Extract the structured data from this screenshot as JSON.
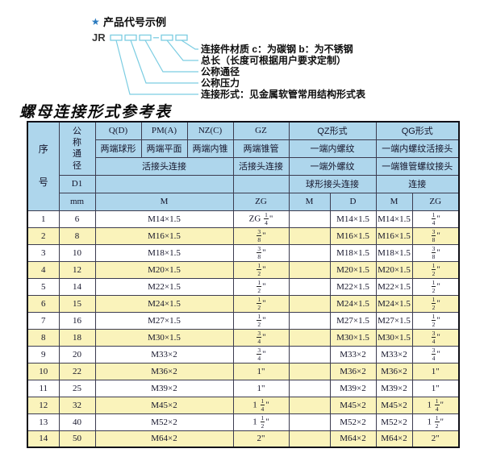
{
  "diagram": {
    "star": "★",
    "title": "产品代号示例",
    "prefix": "JR",
    "dash": "—",
    "labels": [
      "连接件材质  c：为碳钢  b：为不锈钢",
      "总长（长度可根据用户要求定制）",
      "公称通径",
      "公称压力",
      "连接形式：见金属软管常用结构形式表"
    ]
  },
  "table_title": "螺母连接形式参考表",
  "table": {
    "header": {
      "seq": "序号",
      "dn": "公称通径",
      "d1": "D1",
      "mm": "mm",
      "q": "Q(D)",
      "q_sub": "两端球形",
      "pm": "PM(A)",
      "pm_sub": "两端平面",
      "nz": "NZ(C)",
      "nz_sub": "两端内锥",
      "gz": "GZ",
      "gz_sub": "两端锥管",
      "union_left": "活接头连接",
      "union_gz": "活接头连接",
      "qz": "QZ形式",
      "qz_sub1": "一端内螺纹",
      "qz_sub2": "一端外螺纹",
      "qz_sub3": "球形接头连接",
      "qg": "QG形式",
      "qg_sub1": "一端内螺纹活接头",
      "qg_sub2": "一端锥管螺纹接头",
      "qg_sub3": "连接",
      "m_main": "M",
      "zg_gz": "ZG",
      "qz_m": "M",
      "qz_d": "D",
      "qg_m": "M",
      "qg_zg": "ZG"
    },
    "rows": [
      [
        "1",
        "6",
        "M14×1.5",
        "ZG 1/4\"",
        "",
        "M14×1.5",
        "M14×1.5",
        "1/4\""
      ],
      [
        "2",
        "8",
        "M16×1.5",
        "3/8\"",
        "",
        "M16×1.5",
        "M16×1.5",
        "3/8\""
      ],
      [
        "3",
        "10",
        "M18×1.5",
        "3/8\"",
        "",
        "M18×1.5",
        "M18×1.5",
        "3/8\""
      ],
      [
        "4",
        "12",
        "M20×1.5",
        "1/2\"",
        "",
        "M20×1.5",
        "M20×1.5",
        "1/2\""
      ],
      [
        "5",
        "14",
        "M22×1.5",
        "1/2\"",
        "",
        "M22×1.5",
        "M22×1.5",
        "1/2\""
      ],
      [
        "6",
        "15",
        "M24×1.5",
        "1/2\"",
        "",
        "M24×1.5",
        "M24×1.5",
        "1/2\""
      ],
      [
        "7",
        "16",
        "M27×1.5",
        "1/2\"",
        "",
        "M27×1.5",
        "M27×1.5",
        "1/2\""
      ],
      [
        "8",
        "18",
        "M30×1.5",
        "3/4\"",
        "",
        "M30×1.5",
        "M30×1.5",
        "3/4\""
      ],
      [
        "9",
        "20",
        "M33×2",
        "3/4\"",
        "",
        "M33×2",
        "M33×2",
        "3/4\""
      ],
      [
        "10",
        "22",
        "M36×2",
        "1\"",
        "",
        "M36×2",
        "M36×2",
        "1\""
      ],
      [
        "11",
        "25",
        "M39×2",
        "1\"",
        "",
        "M39×2",
        "M39×2",
        "1\""
      ],
      [
        "12",
        "32",
        "M45×2",
        "1 1/4\"",
        "",
        "M45×2",
        "M45×2",
        "1 1/4\""
      ],
      [
        "13",
        "40",
        "M52×2",
        "1 1/2\"",
        "",
        "M52×2",
        "M52×2",
        "1 1/2\""
      ],
      [
        "14",
        "50",
        "M64×2",
        "2\"",
        "",
        "M64×2",
        "M64×2",
        "2\""
      ]
    ]
  },
  "colors": {
    "header_blue": "#aed6ec",
    "row_yellow": "#faf3bb",
    "diagram_line_blue": "#7ccde2",
    "star_blue": "#2b7bbf",
    "border_dark": "#3c3c50"
  }
}
